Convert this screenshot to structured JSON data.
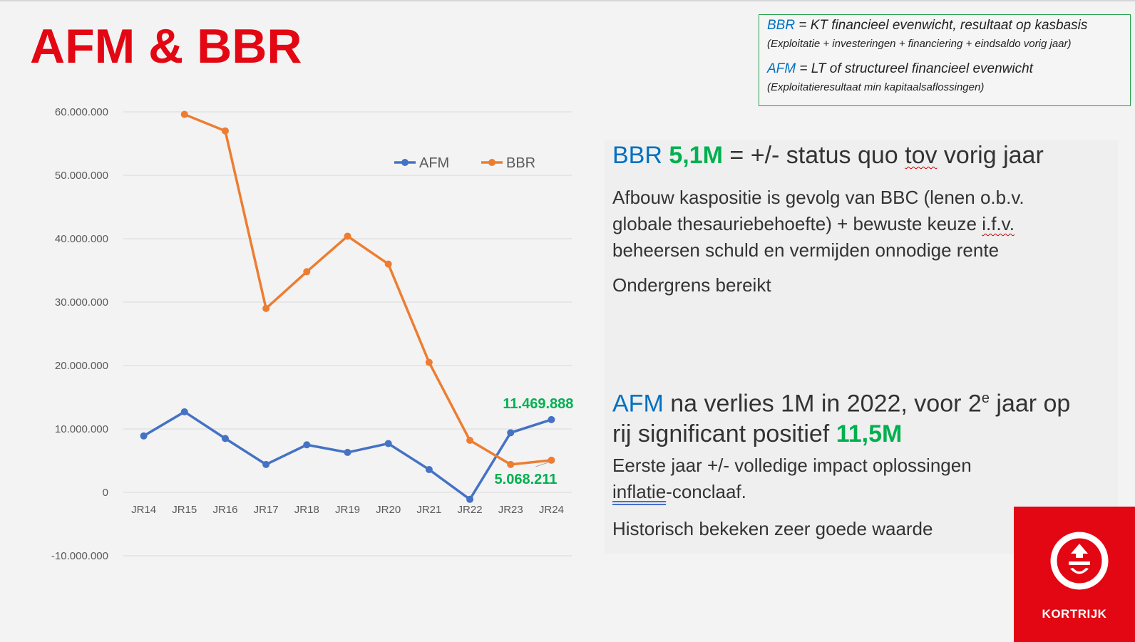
{
  "slide": {
    "title": "AFM & BBR"
  },
  "definitions": {
    "bbr_abbr": "BBR",
    "bbr_def": " = KT financieel evenwicht, resultaat op kasbasis",
    "bbr_sub": "(Exploitatie + investeringen + financiering + eindsaldo vorig jaar)",
    "afm_abbr": "AFM",
    "afm_def": " = LT of structureel financieel evenwicht",
    "afm_sub": "(Exploitatieresultaat min kapitaalsaflossingen)"
  },
  "panel": {
    "bbr_heading": {
      "abbr": "BBR",
      "value": "5,1M",
      "text_a": " = +/- status quo ",
      "text_tov": "tov",
      "text_b": " vorig jaar"
    },
    "bbr_body": {
      "line1": "Afbouw kaspositie is gevolg van BBC (lenen o.b.v.",
      "line2a": "globale thesauriebehoefte) + bewuste keuze ",
      "line2b": "i.f.v.",
      "line3": "beheersen schuld en vermijden onnodige rente"
    },
    "bbr_note": "Ondergrens bereikt",
    "afm_heading": {
      "abbr": "AFM",
      "text_a": " na verlies 1M in 2022, voor 2",
      "sup": "e",
      "text_b": " jaar op",
      "line2": "rij significant positief ",
      "value": "11,5M"
    },
    "afm_body": {
      "line1": "Eerste jaar +/- volledige impact oplossingen",
      "line2a": "inflatie",
      "line2b": "-conclaaf."
    },
    "afm_note": "Historisch bekeken zeer goede waarde"
  },
  "logo": {
    "text": "KORTRIJK"
  },
  "chart_data": {
    "type": "line",
    "categories": [
      "JR14",
      "JR15",
      "JR16",
      "JR17",
      "JR18",
      "JR19",
      "JR20",
      "JR21",
      "JR22",
      "JR23",
      "JR24"
    ],
    "series": [
      {
        "name": "AFM",
        "color": "#4472c4",
        "values": [
          8900000,
          12700000,
          8500000,
          4400000,
          7500000,
          6300000,
          7700000,
          3600000,
          -1100000,
          9400000,
          11469888
        ]
      },
      {
        "name": "BBR",
        "color": "#ed7d31",
        "values": [
          null,
          59600000,
          57000000,
          29000000,
          34800000,
          40400000,
          36000000,
          20500000,
          8200000,
          4400000,
          5068211
        ]
      }
    ],
    "ylim": [
      -10000000,
      60000000
    ],
    "yticks": [
      60000000,
      50000000,
      40000000,
      30000000,
      20000000,
      10000000,
      0,
      -10000000
    ],
    "ytick_labels": [
      "60.000.000",
      "50.000.000",
      "40.000.000",
      "30.000.000",
      "20.000.000",
      "10.000.000",
      "0",
      "-10.000.000"
    ],
    "legend_position": "top-right",
    "grid": true,
    "annotations": [
      {
        "series": "AFM",
        "category": "JR24",
        "text": "11.469.888",
        "color": "#00b050"
      },
      {
        "series": "BBR",
        "category": "JR24",
        "text": "5.068.211",
        "color": "#00b050"
      }
    ]
  }
}
